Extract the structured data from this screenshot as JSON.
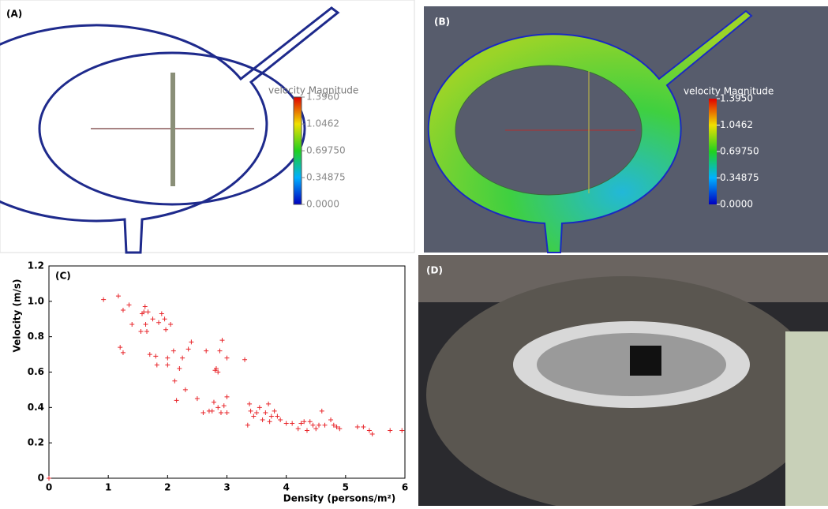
{
  "chart_data": [
    {
      "type": "colorbar",
      "label": "(A)",
      "colorbar_title": "velocity Magnitude",
      "clim": [
        0,
        1.396
      ],
      "ticks": [
        {
          "value": 0,
          "label": "0.0000"
        },
        0.34875,
        {
          "value": 0.6975,
          "label": "0.69750"
        },
        1.0462,
        {
          "value": 1.396,
          "label": "1.3960"
        }
      ]
    },
    {
      "type": "colorbar",
      "label": "(B)",
      "colorbar_title": "velocity Magnitude",
      "clim": [
        0,
        1.395
      ],
      "ticks": [
        {
          "value": 0,
          "label": "0.0000"
        },
        0.34875,
        {
          "value": 0.6975,
          "label": "0.69750"
        },
        1.0462,
        {
          "value": 1.395,
          "label": "1.3950"
        }
      ]
    },
    {
      "type": "scatter",
      "label": "(C)",
      "x_label": "Density (persons/m²)",
      "y_label": "Velocity (m/s)",
      "color": "#e8262b",
      "marker": "+",
      "xlim": [
        0,
        6
      ],
      "ylim": [
        0,
        1.2
      ],
      "xticks": [
        0,
        1,
        2,
        3,
        4,
        5,
        6
      ],
      "yticks": [
        0,
        0.2,
        0.4,
        0.6,
        0.8,
        {
          "value": 1,
          "label": "1.0"
        },
        1.2
      ],
      "x": [
        0.92,
        1.17,
        1.2,
        1.25,
        1.25,
        1.35,
        1.4,
        1.55,
        1.57,
        1.6,
        1.62,
        1.63,
        1.65,
        1.67,
        1.7,
        1.75,
        1.8,
        1.82,
        1.85,
        1.9,
        1.95,
        1.97,
        2.0,
        2.0,
        2.05,
        2.1,
        2.12,
        2.15,
        2.2,
        2.25,
        2.3,
        2.35,
        2.4,
        2.5,
        2.6,
        2.65,
        2.7,
        2.75,
        2.78,
        2.8,
        2.82,
        2.85,
        2.85,
        2.88,
        2.9,
        2.92,
        2.95,
        3.0,
        3.0,
        3.0,
        3.3,
        3.35,
        3.38,
        3.4,
        3.45,
        3.5,
        3.55,
        3.6,
        3.65,
        3.7,
        3.72,
        3.75,
        3.8,
        3.85,
        3.9,
        4.0,
        4.1,
        4.2,
        4.25,
        4.3,
        4.35,
        4.4,
        4.45,
        4.5,
        4.55,
        4.6,
        4.65,
        4.75,
        4.8,
        4.85,
        4.9,
        5.2,
        5.3,
        5.4,
        5.45,
        5.75,
        5.95,
        0
      ],
      "y": [
        1.01,
        1.03,
        0.74,
        0.71,
        0.95,
        0.98,
        0.87,
        0.83,
        0.93,
        0.94,
        0.97,
        0.87,
        0.83,
        0.94,
        0.7,
        0.9,
        0.69,
        0.64,
        0.88,
        0.93,
        0.9,
        0.84,
        0.68,
        0.64,
        0.87,
        0.72,
        0.55,
        0.44,
        0.62,
        0.68,
        0.5,
        0.73,
        0.77,
        0.45,
        0.37,
        0.72,
        0.38,
        0.38,
        0.43,
        0.61,
        0.62,
        0.6,
        0.4,
        0.72,
        0.37,
        0.78,
        0.41,
        0.46,
        0.68,
        0.37,
        0.67,
        0.3,
        0.42,
        0.38,
        0.35,
        0.37,
        0.4,
        0.33,
        0.37,
        0.42,
        0.32,
        0.35,
        0.38,
        0.35,
        0.33,
        0.31,
        0.31,
        0.28,
        0.31,
        0.32,
        0.27,
        0.32,
        0.3,
        0.28,
        0.3,
        0.38,
        0.3,
        0.33,
        0.3,
        0.29,
        0.28,
        0.29,
        0.29,
        0.27,
        0.25,
        0.27,
        0.27,
        0
      ]
    },
    {
      "type": "photo",
      "label": "(D)"
    }
  ]
}
